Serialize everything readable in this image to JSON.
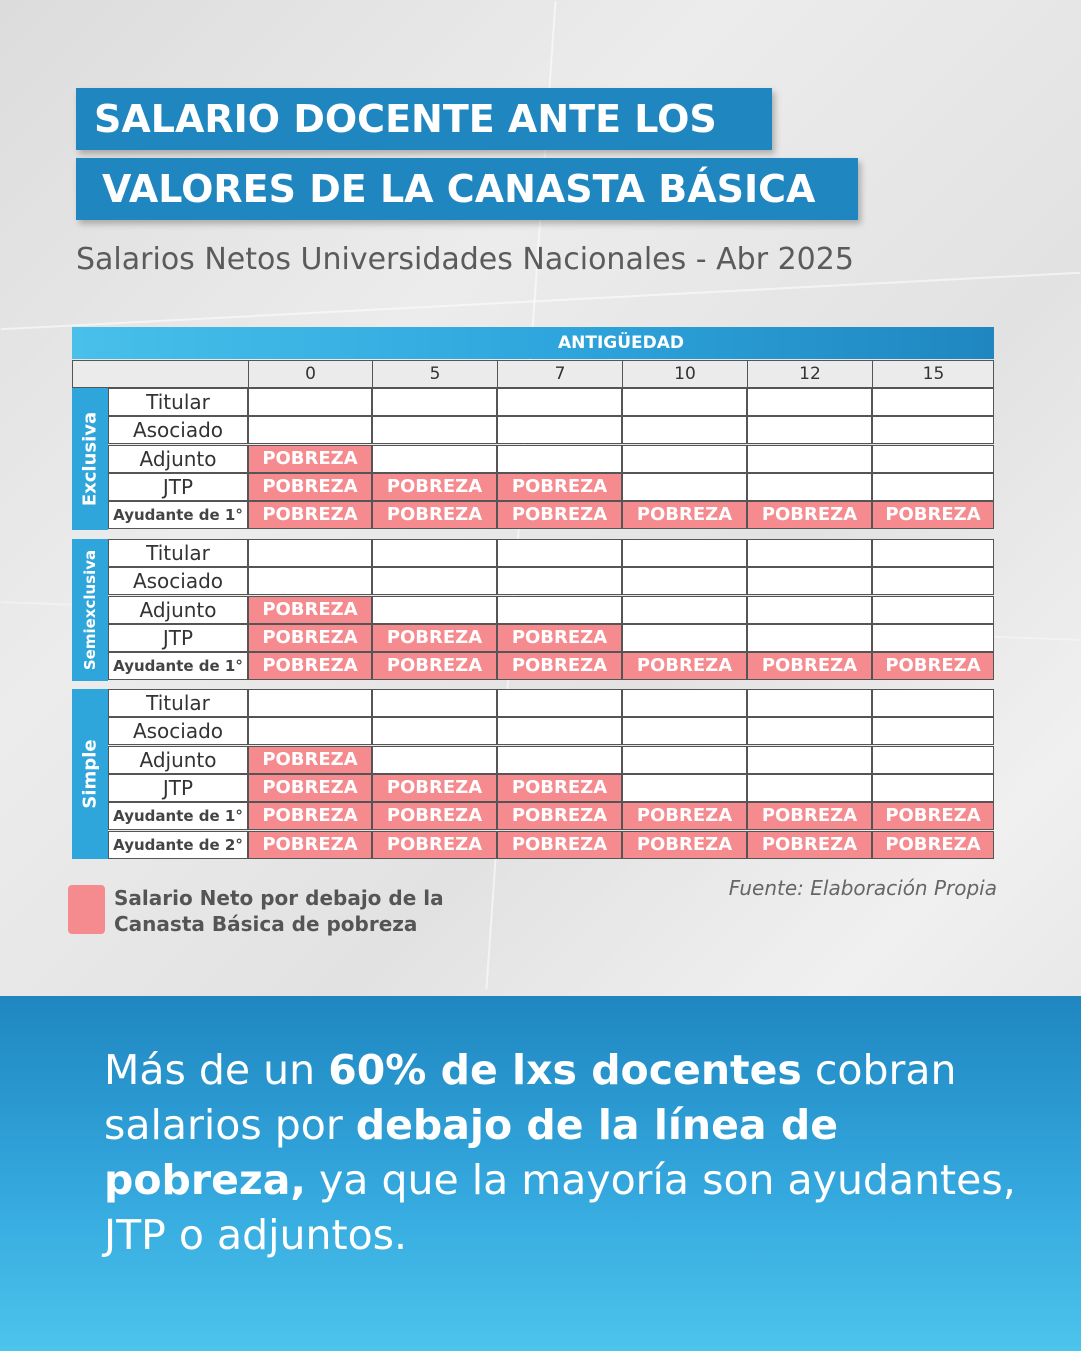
{
  "title": {
    "line1": "SALARIO DOCENTE ANTE LOS",
    "line2": "VALORES DE LA CANASTA BÁSICA"
  },
  "subtitle": "Salarios Netos Universidades Nacionales - Abr 2025",
  "chart_data": {
    "type": "table",
    "column_group_label": "ANTIGÜEDAD",
    "columns": [
      "0",
      "5",
      "7",
      "10",
      "12",
      "15"
    ],
    "cell_text": "POBREZA",
    "groups": [
      {
        "name": "Exclusiva",
        "rows": [
          {
            "label": "Titular",
            "poor": [
              false,
              false,
              false,
              false,
              false,
              false
            ]
          },
          {
            "label": "Asociado",
            "poor": [
              false,
              false,
              false,
              false,
              false,
              false
            ]
          },
          {
            "label": "Adjunto",
            "poor": [
              true,
              false,
              false,
              false,
              false,
              false
            ]
          },
          {
            "label": "JTP",
            "poor": [
              true,
              true,
              true,
              false,
              false,
              false
            ]
          },
          {
            "label": "Ayudante de 1°",
            "poor": [
              true,
              true,
              true,
              true,
              true,
              true
            ]
          }
        ]
      },
      {
        "name": "Semiexclusiva",
        "rows": [
          {
            "label": "Titular",
            "poor": [
              false,
              false,
              false,
              false,
              false,
              false
            ]
          },
          {
            "label": "Asociado",
            "poor": [
              false,
              false,
              false,
              false,
              false,
              false
            ]
          },
          {
            "label": "Adjunto",
            "poor": [
              true,
              false,
              false,
              false,
              false,
              false
            ]
          },
          {
            "label": "JTP",
            "poor": [
              true,
              true,
              true,
              false,
              false,
              false
            ]
          },
          {
            "label": "Ayudante de 1°",
            "poor": [
              true,
              true,
              true,
              true,
              true,
              true
            ]
          }
        ]
      },
      {
        "name": "Simple",
        "rows": [
          {
            "label": "Titular",
            "poor": [
              false,
              false,
              false,
              false,
              false,
              false
            ]
          },
          {
            "label": "Asociado",
            "poor": [
              false,
              false,
              false,
              false,
              false,
              false
            ]
          },
          {
            "label": "Adjunto",
            "poor": [
              true,
              false,
              false,
              false,
              false,
              false
            ]
          },
          {
            "label": "JTP",
            "poor": [
              true,
              true,
              true,
              false,
              false,
              false
            ]
          },
          {
            "label": "Ayudante de 1°",
            "poor": [
              true,
              true,
              true,
              true,
              true,
              true
            ]
          },
          {
            "label": "Ayudante de 2°",
            "poor": [
              true,
              true,
              true,
              true,
              true,
              true
            ]
          }
        ]
      }
    ],
    "legend": "Salario Neto por debajo de la Canasta Básica de pobreza",
    "source": "Fuente: Elaboración Propia"
  },
  "colors": {
    "poverty": "#f68b8f",
    "brand_blue": "#1f86c0",
    "light_blue": "#2ea6dc"
  },
  "bottom_message": {
    "segments": [
      {
        "text": "Más de un ",
        "bold": false
      },
      {
        "text": "60% de lxs docentes",
        "bold": true
      },
      {
        "text": " cobran salarios por ",
        "bold": false
      },
      {
        "text": "debajo de la línea de pobreza,",
        "bold": true
      },
      {
        "text": " ya que la mayoría son ayudantes, JTP o adjuntos.",
        "bold": false
      }
    ]
  }
}
